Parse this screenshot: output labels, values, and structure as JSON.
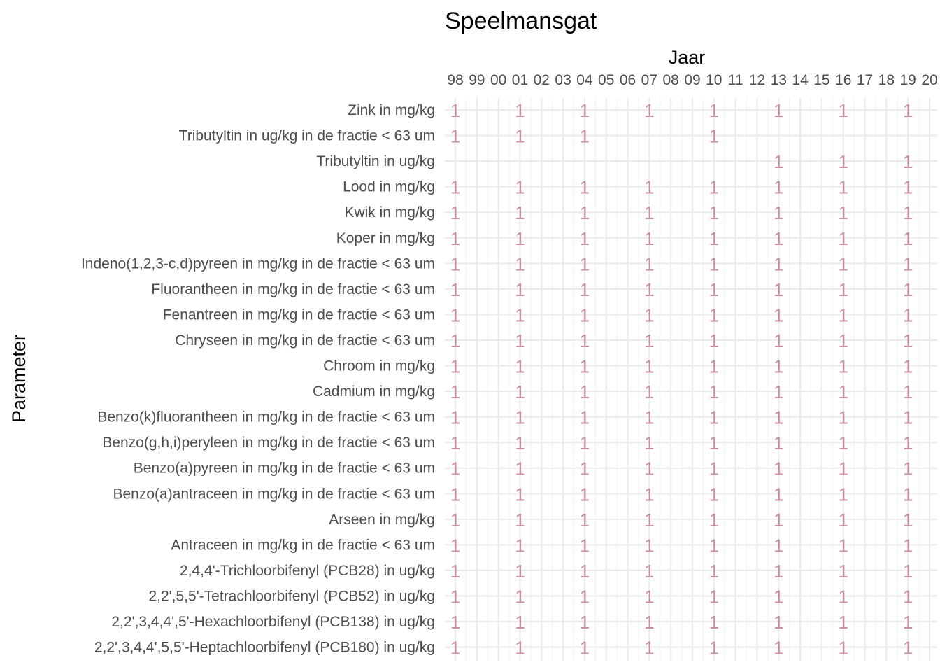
{
  "chart_data": {
    "type": "scatter",
    "title": "Speelmansgat",
    "xlabel": "Jaar",
    "ylabel": "Parameter",
    "x_ticks": [
      "98",
      "99",
      "00",
      "01",
      "02",
      "03",
      "04",
      "05",
      "06",
      "07",
      "08",
      "09",
      "10",
      "11",
      "12",
      "13",
      "14",
      "15",
      "16",
      "17",
      "18",
      "19",
      "20"
    ],
    "x_range": [
      1998,
      2020
    ],
    "grid": true,
    "legend": "none",
    "point_label": "1",
    "mark_color": "#c9909e",
    "categories": [
      "Zink in mg/kg",
      "Tributyltin in ug/kg in de fractie < 63 um",
      "Tributyltin in ug/kg",
      "Lood in mg/kg",
      "Kwik in mg/kg",
      "Koper in mg/kg",
      "Indeno(1,2,3-c,d)pyreen in mg/kg in de fractie < 63 um",
      "Fluorantheen in mg/kg in de fractie < 63 um",
      "Fenantreen in mg/kg in de fractie < 63 um",
      "Chryseen in mg/kg in de fractie < 63 um",
      "Chroom in mg/kg",
      "Cadmium in mg/kg",
      "Benzo(k)fluorantheen in mg/kg in de fractie < 63 um",
      "Benzo(g,h,i)peryleen in mg/kg in de fractie < 63 um",
      "Benzo(a)pyreen in mg/kg in de fractie < 63 um",
      "Benzo(a)antraceen in mg/kg in de fractie < 63 um",
      "Arseen in mg/kg",
      "Antraceen in mg/kg in de fractie < 63 um",
      "2,4,4'-Trichloorbifenyl (PCB28) in ug/kg",
      "2,2',5,5'-Tetrachloorbifenyl (PCB52) in ug/kg",
      "2,2',3,4,4',5'-Hexachloorbifenyl (PCB138) in ug/kg",
      "2,2',3,4,4',5,5'-Heptachloorbifenyl (PCB180) in ug/kg"
    ],
    "points": {
      "Zink in mg/kg": [
        1998,
        2001,
        2004,
        2007,
        2010,
        2013,
        2016,
        2019
      ],
      "Tributyltin in ug/kg in de fractie < 63 um": [
        1998,
        2001,
        2004,
        2010
      ],
      "Tributyltin in ug/kg": [
        2013,
        2016,
        2019
      ],
      "Lood in mg/kg": [
        1998,
        2001,
        2004,
        2007,
        2010,
        2013,
        2016,
        2019
      ],
      "Kwik in mg/kg": [
        1998,
        2001,
        2004,
        2007,
        2010,
        2013,
        2016,
        2019
      ],
      "Koper in mg/kg": [
        1998,
        2001,
        2004,
        2007,
        2010,
        2013,
        2016,
        2019
      ],
      "Indeno(1,2,3-c,d)pyreen in mg/kg in de fractie < 63 um": [
        1998,
        2001,
        2004,
        2007,
        2010,
        2013,
        2016,
        2019
      ],
      "Fluorantheen in mg/kg in de fractie < 63 um": [
        1998,
        2001,
        2004,
        2007,
        2010,
        2013,
        2016,
        2019
      ],
      "Fenantreen in mg/kg in de fractie < 63 um": [
        1998,
        2001,
        2004,
        2007,
        2010,
        2013,
        2016,
        2019
      ],
      "Chryseen in mg/kg in de fractie < 63 um": [
        1998,
        2001,
        2004,
        2007,
        2010,
        2013,
        2016,
        2019
      ],
      "Chroom in mg/kg": [
        1998,
        2001,
        2004,
        2007,
        2010,
        2013,
        2016,
        2019
      ],
      "Cadmium in mg/kg": [
        1998,
        2001,
        2004,
        2007,
        2010,
        2013,
        2016,
        2019
      ],
      "Benzo(k)fluorantheen in mg/kg in de fractie < 63 um": [
        1998,
        2001,
        2004,
        2007,
        2010,
        2013,
        2016,
        2019
      ],
      "Benzo(g,h,i)peryleen in mg/kg in de fractie < 63 um": [
        1998,
        2001,
        2004,
        2007,
        2010,
        2013,
        2016,
        2019
      ],
      "Benzo(a)pyreen in mg/kg in de fractie < 63 um": [
        1998,
        2001,
        2004,
        2007,
        2010,
        2013,
        2016,
        2019
      ],
      "Benzo(a)antraceen in mg/kg in de fractie < 63 um": [
        1998,
        2001,
        2004,
        2007,
        2010,
        2013,
        2016,
        2019
      ],
      "Arseen in mg/kg": [
        1998,
        2001,
        2004,
        2007,
        2010,
        2013,
        2016,
        2019
      ],
      "Antraceen in mg/kg in de fractie < 63 um": [
        1998,
        2001,
        2004,
        2007,
        2010,
        2013,
        2016,
        2019
      ],
      "2,4,4'-Trichloorbifenyl (PCB28) in ug/kg": [
        1998,
        2001,
        2004,
        2007,
        2010,
        2013,
        2016,
        2019
      ],
      "2,2',5,5'-Tetrachloorbifenyl (PCB52) in ug/kg": [
        1998,
        2001,
        2004,
        2007,
        2010,
        2013,
        2016,
        2019
      ],
      "2,2',3,4,4',5'-Hexachloorbifenyl (PCB138) in ug/kg": [
        1998,
        2001,
        2004,
        2007,
        2010,
        2013,
        2016,
        2019
      ],
      "2,2',3,4,4',5,5'-Heptachloorbifenyl (PCB180) in ug/kg": [
        1998,
        2001,
        2004,
        2007,
        2010,
        2013,
        2016,
        2019
      ]
    }
  }
}
